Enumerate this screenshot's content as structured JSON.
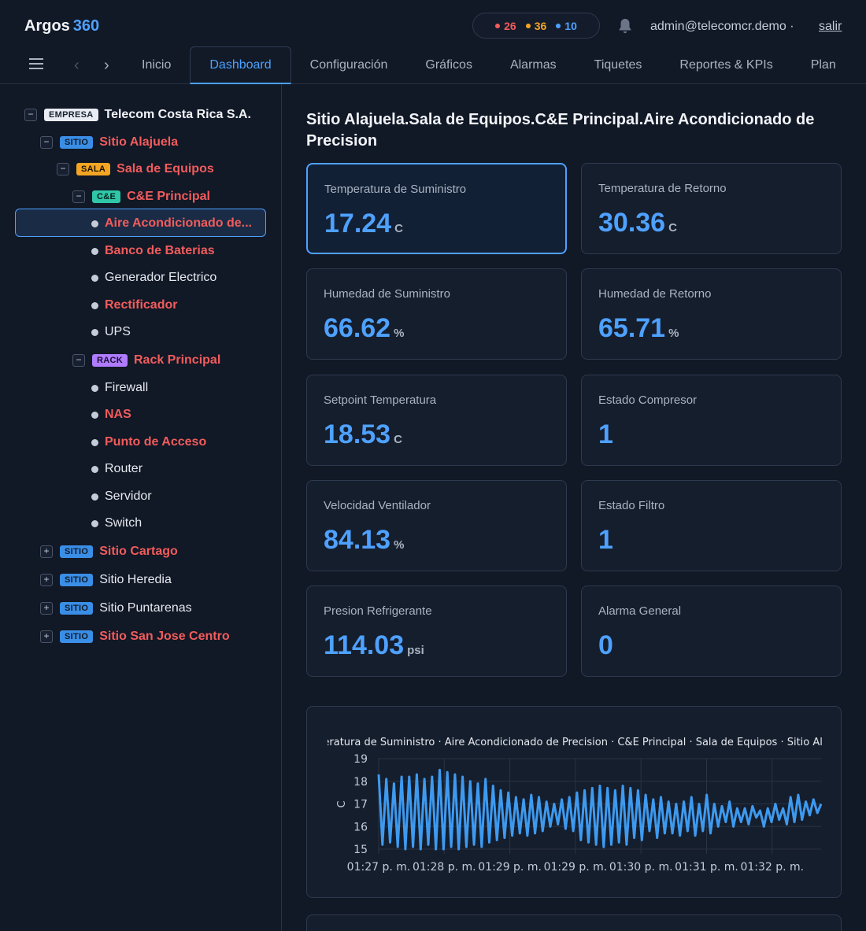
{
  "header": {
    "brand": "Argos",
    "brand_accent": "360",
    "counters": [
      {
        "value": "26",
        "color": "#f25c5c"
      },
      {
        "value": "36",
        "color": "#f5a524"
      },
      {
        "value": "10",
        "color": "#4ea1ff"
      }
    ],
    "user": "admin@telecomcr.demo ·",
    "logout": "salir"
  },
  "nav": {
    "back": "‹",
    "forward": "›",
    "tabs": [
      "Inicio",
      "Dashboard",
      "Configuración",
      "Gráficos",
      "Alarmas",
      "Tiquetes",
      "Reportes & KPIs",
      "Plan"
    ],
    "active_tab": "Dashboard"
  },
  "tree": {
    "company": {
      "badge": "EMPRESA",
      "label": "Telecom Costa Rica S.A.",
      "toggle": "−"
    },
    "site1": {
      "badge": "SITIO",
      "label": "Sitio Alajuela",
      "toggle": "−"
    },
    "room": {
      "badge": "SALA",
      "label": "Sala de Equipos",
      "toggle": "−"
    },
    "ce": {
      "badge": "C&E",
      "label": "C&E Principal",
      "toggle": "−"
    },
    "ce_items": [
      {
        "label": "Aire Acondicionado de...",
        "alarm": true
      },
      {
        "label": "Banco de Baterias",
        "alarm": true
      },
      {
        "label": "Generador Electrico",
        "alarm": false
      },
      {
        "label": "Rectificador",
        "alarm": true
      },
      {
        "label": "UPS",
        "alarm": false
      }
    ],
    "rack": {
      "badge": "RACK",
      "label": "Rack Principal",
      "toggle": "−"
    },
    "rack_items": [
      {
        "label": "Firewall",
        "alarm": false
      },
      {
        "label": "NAS",
        "alarm": true
      },
      {
        "label": "Punto de Acceso",
        "alarm": true
      },
      {
        "label": "Router",
        "alarm": false
      },
      {
        "label": "Servidor",
        "alarm": false
      },
      {
        "label": "Switch",
        "alarm": false
      }
    ],
    "other_sites": [
      {
        "badge": "SITIO",
        "label": "Sitio Cartago",
        "toggle": "+",
        "alarm": true
      },
      {
        "badge": "SITIO",
        "label": "Sitio Heredia",
        "toggle": "+",
        "alarm": false
      },
      {
        "badge": "SITIO",
        "label": "Sitio Puntarenas",
        "toggle": "+",
        "alarm": false
      },
      {
        "badge": "SITIO",
        "label": "Sitio San Jose Centro",
        "toggle": "+",
        "alarm": true
      }
    ]
  },
  "main": {
    "title": "Sitio Alajuela.Sala de Equipos.C&E Principal.Aire Acondicionado de Precision",
    "cards": [
      {
        "label": "Temperatura de Suministro",
        "value": "17.24",
        "unit": "C"
      },
      {
        "label": "Temperatura de Retorno",
        "value": "30.36",
        "unit": "C"
      },
      {
        "label": "Humedad de Suministro",
        "value": "66.62",
        "unit": "%"
      },
      {
        "label": "Humedad de Retorno",
        "value": "65.71",
        "unit": "%"
      },
      {
        "label": "Setpoint Temperatura",
        "value": "18.53",
        "unit": "C"
      },
      {
        "label": "Estado Compresor",
        "value": "1",
        "unit": ""
      },
      {
        "label": "Velocidad Ventilador",
        "value": "84.13",
        "unit": "%"
      },
      {
        "label": "Estado Filtro",
        "value": "1",
        "unit": ""
      },
      {
        "label": "Presion Refrigerante",
        "value": "114.03",
        "unit": "psi"
      },
      {
        "label": "Alarma General",
        "value": "0",
        "unit": ""
      }
    ]
  },
  "chart_data": {
    "type": "line",
    "title": "Temperatura de Suministro · Aire Acondicionado de Precision · C&E Principal · Sala de Equipos · Sitio Alajuela",
    "ylabel": "C",
    "xlabel": "",
    "ylim": [
      15,
      19
    ],
    "yticks": [
      15,
      16,
      17,
      18,
      19
    ],
    "xticks": [
      "01:27 p. m.",
      "01:28 p. m.",
      "01:29 p. m.",
      "01:29 p. m.",
      "01:30 p. m.",
      "01:31 p. m.",
      "01:32 p. m."
    ],
    "grid": true,
    "line_color": "#3d9af0",
    "series": [
      {
        "y": [
          18.3,
          15.2,
          18.1,
          15.3,
          17.9,
          15.1,
          18.2,
          15.0,
          18.2,
          15.1,
          18.3,
          15.0,
          18.1,
          15.2,
          18.2,
          15.0,
          18.5,
          15.0,
          18.4,
          15.1,
          18.3,
          15.0,
          18.2,
          15.1,
          18.0,
          15.2,
          17.9,
          15.1,
          18.1,
          15.3,
          17.8,
          15.4,
          17.6,
          15.5,
          17.5,
          15.6,
          17.3,
          15.7,
          17.2,
          15.6,
          17.4,
          15.7,
          17.3,
          15.8,
          17.1,
          16.0,
          17.0,
          16.1,
          17.2,
          15.9,
          17.3,
          15.8,
          17.5,
          15.4,
          17.6,
          15.3,
          17.7,
          15.2,
          17.8,
          15.1,
          17.7,
          15.2,
          17.6,
          15.3,
          17.8,
          15.2,
          17.7,
          15.5,
          17.6,
          15.4,
          17.4,
          15.8,
          17.2,
          15.5,
          17.3,
          15.7,
          17.1,
          15.7,
          17.0,
          15.6,
          17.1,
          15.8,
          17.3,
          15.6,
          17.0,
          15.8,
          17.4,
          15.7,
          17.0,
          16.0,
          16.9,
          16.2,
          17.1,
          16.0,
          16.8,
          16.2,
          16.8,
          16.1,
          16.9,
          16.4,
          16.7,
          16.0,
          16.8,
          16.2,
          17.0,
          16.3,
          16.8,
          16.1,
          17.3,
          16.2,
          17.4,
          16.3,
          17.1,
          16.5,
          17.2,
          16.6,
          17.0
        ]
      }
    ]
  }
}
